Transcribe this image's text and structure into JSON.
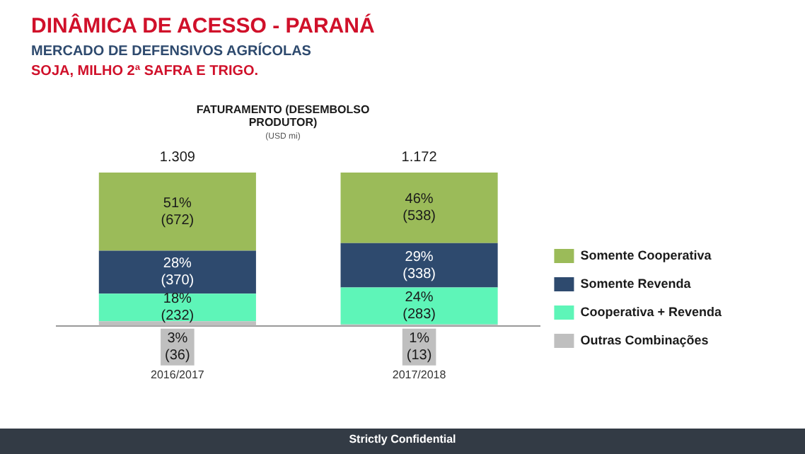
{
  "chart_data": {
    "type": "bar",
    "title": "DINÂMICA DE ACESSO - PARANÁ",
    "subtitle": "MERCADO DE DEFENSIVOS AGRÍCOLAS",
    "annotations": [
      "SOJA, MILHO 2ª SAFRA E TRIGO.",
      "FATURAMENTO (DESEMBOLSO PRODUTOR)",
      "(USD mi)",
      "Strictly Confidential",
      {
        "text": "1.309",
        "x": "2016/2017",
        "y": 100
      },
      {
        "text": "1.172",
        "x": "2017/2018",
        "y": 100
      }
    ],
    "categories": [
      "2016/2017",
      "2017/2018"
    ],
    "stacked": true,
    "ylim": [
      0,
      100
    ],
    "tick_labels": "x",
    "grid": false,
    "legend": "right",
    "series": [
      {
        "name": "Outras Combinações",
        "color": "#bfbfbf",
        "values": [
          3,
          1
        ],
        "value_labels": [
          "3%\n(36)",
          "1%\n(13)"
        ]
      },
      {
        "name": "Cooperativa + Revenda",
        "color": "#5ef5b8",
        "values": [
          18,
          24
        ],
        "value_labels": [
          "18%\n(232)",
          "24%\n(283)"
        ]
      },
      {
        "name": "Somente Revenda",
        "color": "#2e4a6e",
        "values": [
          28,
          29
        ],
        "value_labels": [
          "28%\n(370)",
          "29%\n(338)"
        ]
      },
      {
        "name": "Somente Cooperativa",
        "color": "#9bbb59",
        "values": [
          51,
          46
        ],
        "value_labels": [
          "51%\n(672)",
          "46%\n(538)"
        ]
      }
    ]
  }
}
